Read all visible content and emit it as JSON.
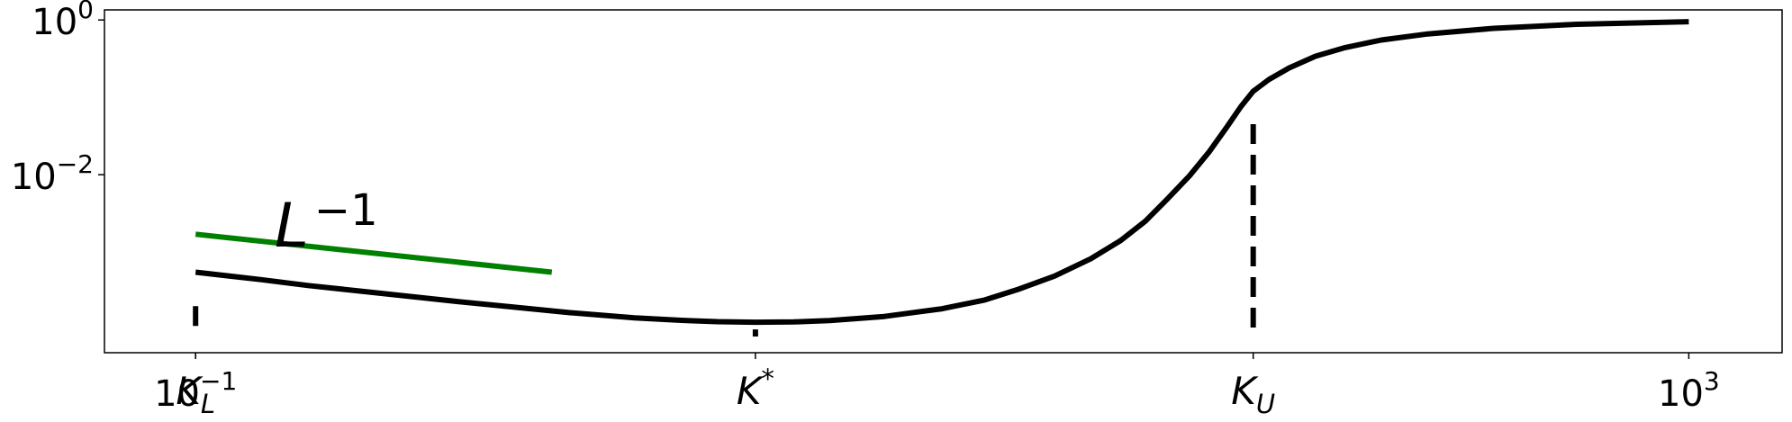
{
  "chart_data": {
    "type": "line",
    "title": "",
    "xlabel": "",
    "ylabel": "",
    "xscale": "log",
    "yscale": "log",
    "xlim": [
      0.057,
      1778
    ],
    "ylim": [
      5e-05,
      1.35
    ],
    "grid": false,
    "x_ticks": [
      {
        "value": 0.1,
        "base": "10",
        "exp": "−1"
      },
      {
        "value": 1000,
        "base": "10",
        "exp": "3"
      }
    ],
    "y_ticks": [
      {
        "value": 1,
        "base": "10",
        "exp": "0"
      },
      {
        "value": 0.01,
        "base": "10",
        "exp": "−2"
      }
    ],
    "x_markers": [
      {
        "label": "K",
        "sub": "L",
        "sup": "",
        "x": 0.1,
        "y_top": 0.0002
      },
      {
        "label": "K",
        "sub": "",
        "sup": "*",
        "x": 3.16,
        "y_top": 0.0001
      },
      {
        "label": "K",
        "sub": "U",
        "sup": "",
        "x": 68.1,
        "y_top": 0.045
      }
    ],
    "series": [
      {
        "color": "#000000",
        "x": [
          0.1,
          0.15,
          0.2,
          0.3,
          0.5,
          0.7,
          1,
          1.5,
          2,
          2.5,
          3.16,
          4,
          5,
          7,
          10,
          13,
          16,
          20,
          25,
          30,
          35,
          40,
          46,
          52,
          58,
          63,
          68.1,
          75,
          85,
          100,
          120,
          150,
          200,
          300,
          500,
          1000
        ],
        "y": [
          0.00055,
          0.00044,
          0.00037,
          0.0003,
          0.00023,
          0.000196,
          0.000165,
          0.000141,
          0.000131,
          0.000126,
          0.000124,
          0.000125,
          0.00013,
          0.000147,
          0.000185,
          0.00024,
          0.00033,
          0.00049,
          0.00082,
          0.0014,
          0.0025,
          0.0048,
          0.0097,
          0.02,
          0.042,
          0.075,
          0.12,
          0.17,
          0.24,
          0.34,
          0.44,
          0.55,
          0.66,
          0.78,
          0.88,
          0.95
        ]
      }
    ],
    "reference_line": {
      "label": "L",
      "label_exp": "−1",
      "color": "#008000",
      "x": [
        0.1,
        0.9
      ],
      "y": [
        0.0017,
        0.00055
      ]
    }
  }
}
